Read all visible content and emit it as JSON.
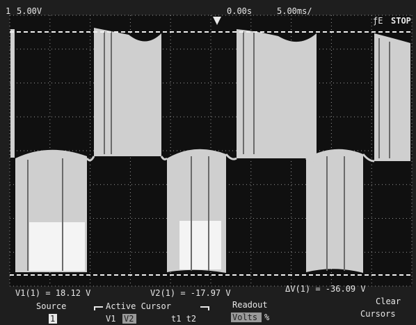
{
  "header": {
    "channel": "1",
    "volts_per_div": "5.00V",
    "time_offset": "0.00s",
    "time_per_div": "5.00ms/",
    "trigger": "ƒE",
    "status": "STOP"
  },
  "readouts": [
    "V1(1) = 18.12 V",
    "V2(1) = -17.97 V",
    "ΔV(1) = -36.09 V"
  ],
  "softkeys": {
    "source": {
      "label": "Source",
      "value": "1"
    },
    "active_cursor": {
      "label": "Active Cursor",
      "options": [
        "V1",
        "V2",
        "t1 t2"
      ]
    },
    "readout": {
      "label": "Readout",
      "options": [
        "Volts",
        "%"
      ]
    },
    "clear": {
      "label": "Clear",
      "sub": "Cursors"
    }
  }
}
